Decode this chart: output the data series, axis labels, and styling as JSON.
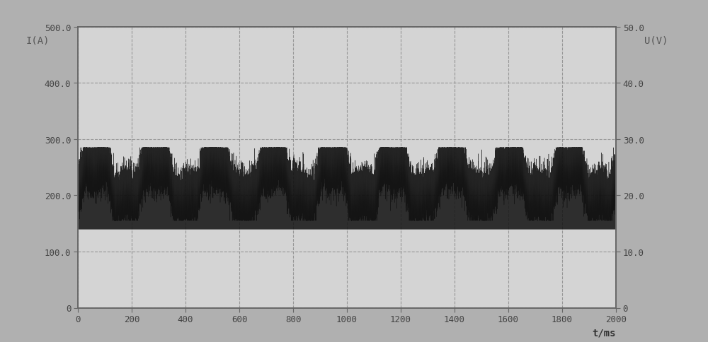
{
  "title": "",
  "left_ylabel": "I(A)",
  "right_ylabel": "U(V)",
  "xlabel": "t/ms",
  "xlim": [
    0,
    2000
  ],
  "ylim_left": [
    0,
    500
  ],
  "ylim_right": [
    0,
    50
  ],
  "left_yticks": [
    0,
    100,
    200,
    300,
    400,
    500
  ],
  "right_yticks": [
    0,
    10,
    20,
    30,
    40,
    50
  ],
  "left_ytick_labels": [
    "0",
    "100.0",
    "200.0",
    "300.0",
    "400.0",
    "500.0"
  ],
  "right_ytick_labels": [
    "0",
    "10.0",
    "20.0",
    "30.0",
    "40.0",
    "50.0"
  ],
  "xticks": [
    0,
    200,
    400,
    600,
    800,
    1000,
    1200,
    1400,
    1600,
    1800,
    2000
  ],
  "bg_color": "#b0b0b0",
  "plot_bg_color": "#d4d4d4",
  "grid_color": "#888888",
  "line_color": "#111111",
  "base_current": 200,
  "peak_current": 255,
  "noise_amplitude": 20,
  "period_ms": 220,
  "trapezoid_rise": 0.12,
  "trapezoid_high": 0.38,
  "trapezoid_fall": 0.12,
  "trapezoid_low": 0.38
}
